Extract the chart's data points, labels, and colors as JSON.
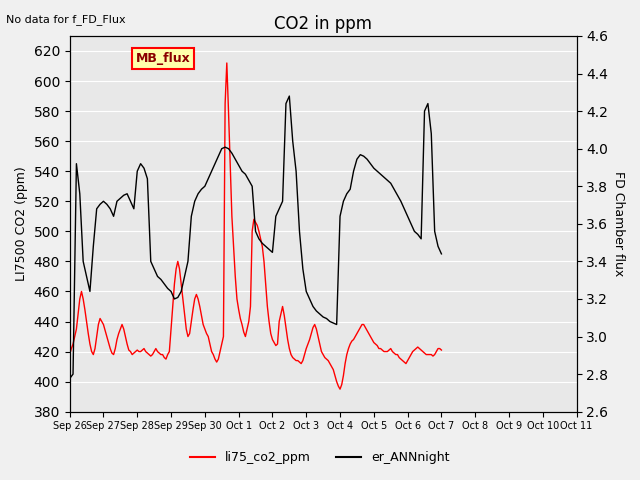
{
  "title": "CO2 in ppm",
  "ylabel_left": "LI7500 CO2 (ppm)",
  "ylabel_right": "FD Chamber flux",
  "ylim_left": [
    380,
    630
  ],
  "ylim_right": [
    2.6,
    4.6
  ],
  "top_left_text": "No data for f_FD_Flux",
  "legend_box_label": "MB_flux",
  "legend_entries": [
    "li75_co2_ppm",
    "er_ANNnight"
  ],
  "line_colors": [
    "red",
    "black"
  ],
  "background_color": "#d3d3d3",
  "plot_bg_color": "#e8e8e8",
  "fig_bg_color": "#f0f0f0",
  "x_tick_labels": [
    "Sep 26",
    "Sep 27",
    "Sep 28",
    "Sep 29",
    "Sep 30",
    "Oct 1",
    "Oct 2",
    "Oct 3",
    "Oct 4",
    "Oct 5",
    "Oct 6",
    "Oct 7",
    "Oct 8",
    "Oct 9",
    "Oct 10",
    "Oct 11"
  ],
  "yticks_left": [
    380,
    400,
    420,
    440,
    460,
    480,
    500,
    520,
    540,
    560,
    580,
    600,
    620
  ],
  "yticks_right": [
    2.6,
    2.8,
    3.0,
    3.2,
    3.4,
    3.6,
    3.8,
    4.0,
    4.2,
    4.4,
    4.6
  ],
  "red_data": {
    "x": [
      0,
      0.05,
      0.1,
      0.15,
      0.2,
      0.25,
      0.3,
      0.35,
      0.4,
      0.45,
      0.5,
      0.55,
      0.6,
      0.65,
      0.7,
      0.75,
      0.8,
      0.85,
      0.9,
      0.95,
      1.0,
      1.05,
      1.1,
      1.15,
      1.2,
      1.25,
      1.3,
      1.35,
      1.4,
      1.45,
      1.5,
      1.55,
      1.6,
      1.65,
      1.7,
      1.75,
      1.8,
      1.85,
      1.9,
      1.95,
      2.0,
      2.05,
      2.1,
      2.15,
      2.2,
      2.25,
      2.3,
      2.35,
      2.4,
      2.45,
      2.5,
      2.55,
      2.6,
      2.65,
      2.7,
      2.75,
      2.8,
      2.85,
      2.9,
      2.95,
      3.0,
      3.05,
      3.1,
      3.15,
      3.2,
      3.25,
      3.3,
      3.35,
      3.4,
      3.45,
      3.5,
      3.55,
      3.6,
      3.65,
      3.7,
      3.75,
      3.8,
      3.85,
      3.9,
      3.95,
      4.0,
      4.05,
      4.1,
      4.15,
      4.2,
      4.25,
      4.3,
      4.35,
      4.4,
      4.45,
      4.5,
      4.55,
      4.6,
      4.65,
      4.7,
      4.75,
      4.8,
      4.85,
      4.9,
      4.95,
      5.0,
      5.05,
      5.1,
      5.15,
      5.2,
      5.25,
      5.3,
      5.35,
      5.4,
      5.45,
      5.5,
      5.55,
      5.6,
      5.65,
      5.7,
      5.75,
      5.8,
      5.85,
      5.9,
      5.95,
      6.0,
      6.05,
      6.1,
      6.15,
      6.2,
      6.25,
      6.3,
      6.35,
      6.4,
      6.45,
      6.5,
      6.55,
      6.6,
      6.65,
      6.7,
      6.75,
      6.8,
      6.85,
      6.9,
      6.95,
      7.0,
      7.05,
      7.1,
      7.15,
      7.2,
      7.25,
      7.3,
      7.35,
      7.4,
      7.45,
      7.5,
      7.55,
      7.6,
      7.65,
      7.7,
      7.75,
      7.8,
      7.85,
      7.9,
      7.95,
      8.0,
      8.05,
      8.1,
      8.15,
      8.2,
      8.25,
      8.3,
      8.35,
      8.4,
      8.45,
      8.5,
      8.55,
      8.6,
      8.65,
      8.7,
      8.75,
      8.8,
      8.85,
      8.9,
      8.95,
      9.0,
      9.05,
      9.1,
      9.15,
      9.2,
      9.25,
      9.3,
      9.35,
      9.4,
      9.45,
      9.5,
      9.55,
      9.6,
      9.65,
      9.7,
      9.75,
      9.8,
      9.85,
      9.9,
      9.95,
      10.0,
      10.05,
      10.1,
      10.15,
      10.2,
      10.25,
      10.3,
      10.35,
      10.4,
      10.45,
      10.5,
      10.55,
      10.6,
      10.65,
      10.7,
      10.75,
      10.8,
      10.85,
      10.9,
      10.95,
      11.0
    ],
    "y": [
      418,
      422,
      425,
      430,
      435,
      445,
      455,
      460,
      455,
      448,
      440,
      432,
      425,
      420,
      418,
      422,
      430,
      438,
      442,
      440,
      438,
      434,
      430,
      426,
      422,
      419,
      418,
      422,
      428,
      432,
      435,
      438,
      435,
      430,
      425,
      421,
      420,
      418,
      419,
      420,
      421,
      420,
      420,
      421,
      422,
      420,
      419,
      418,
      417,
      418,
      420,
      422,
      420,
      419,
      418,
      418,
      416,
      415,
      418,
      420,
      435,
      450,
      465,
      475,
      480,
      475,
      465,
      455,
      445,
      435,
      430,
      432,
      440,
      448,
      455,
      458,
      455,
      450,
      444,
      438,
      435,
      432,
      430,
      425,
      420,
      418,
      415,
      413,
      415,
      420,
      425,
      430,
      585,
      612,
      580,
      545,
      510,
      490,
      470,
      455,
      448,
      442,
      438,
      433,
      430,
      435,
      440,
      450,
      500,
      508,
      506,
      504,
      500,
      495,
      490,
      480,
      465,
      450,
      440,
      432,
      428,
      426,
      424,
      425,
      440,
      445,
      450,
      444,
      436,
      428,
      422,
      418,
      416,
      415,
      414,
      414,
      413,
      412,
      414,
      418,
      422,
      425,
      428,
      432,
      436,
      438,
      435,
      430,
      425,
      420,
      418,
      416,
      415,
      414,
      412,
      410,
      408,
      404,
      400,
      397,
      395,
      398,
      404,
      412,
      418,
      422,
      425,
      427,
      428,
      430,
      432,
      434,
      436,
      438,
      438,
      436,
      434,
      432,
      430,
      428,
      426,
      425,
      424,
      422,
      422,
      421,
      420,
      420,
      420,
      421,
      422,
      420,
      419,
      418,
      418,
      416,
      415,
      414,
      413,
      412,
      414,
      416,
      418,
      420,
      421,
      422,
      423,
      422,
      421,
      420,
      419,
      418,
      418,
      418,
      418,
      417,
      418,
      420,
      422,
      422,
      421
    ]
  },
  "black_data": {
    "x": [
      0,
      0.1,
      0.2,
      0.3,
      0.4,
      0.5,
      0.6,
      0.7,
      0.8,
      0.9,
      1.0,
      1.1,
      1.2,
      1.3,
      1.4,
      1.5,
      1.6,
      1.7,
      1.8,
      1.9,
      2.0,
      2.1,
      2.2,
      2.3,
      2.4,
      2.5,
      2.6,
      2.7,
      2.8,
      2.9,
      3.0,
      3.1,
      3.2,
      3.3,
      3.4,
      3.5,
      3.6,
      3.7,
      3.8,
      3.9,
      4.0,
      4.1,
      4.2,
      4.3,
      4.4,
      4.5,
      4.6,
      4.7,
      4.8,
      4.9,
      5.0,
      5.1,
      5.2,
      5.3,
      5.4,
      5.5,
      5.6,
      5.7,
      5.8,
      5.9,
      6.0,
      6.1,
      6.2,
      6.3,
      6.4,
      6.5,
      6.6,
      6.7,
      6.8,
      6.9,
      7.0,
      7.1,
      7.2,
      7.3,
      7.4,
      7.5,
      7.6,
      7.7,
      7.8,
      7.9,
      8.0,
      8.1,
      8.2,
      8.3,
      8.4,
      8.5,
      8.6,
      8.7,
      8.8,
      8.9,
      9.0,
      9.1,
      9.2,
      9.3,
      9.4,
      9.5,
      9.6,
      9.7,
      9.8,
      9.9,
      10.0,
      10.1,
      10.2,
      10.3,
      10.4,
      10.5,
      10.6,
      10.7,
      10.8,
      10.9,
      11.0
    ],
    "y": [
      402,
      405,
      545,
      525,
      480,
      470,
      460,
      490,
      515,
      518,
      520,
      518,
      515,
      510,
      520,
      522,
      524,
      525,
      520,
      515,
      540,
      545,
      542,
      535,
      480,
      475,
      470,
      468,
      465,
      462,
      460,
      455,
      456,
      460,
      470,
      480,
      510,
      520,
      525,
      528,
      530,
      535,
      540,
      545,
      550,
      555,
      556,
      555,
      552,
      548,
      544,
      540,
      538,
      534,
      530,
      500,
      495,
      492,
      490,
      488,
      486,
      510,
      515,
      520,
      585,
      590,
      560,
      540,
      500,
      475,
      460,
      455,
      450,
      447,
      445,
      443,
      442,
      440,
      439,
      438,
      510,
      520,
      525,
      528,
      540,
      548,
      551,
      550,
      548,
      545,
      542,
      540,
      538,
      536,
      534,
      532,
      528,
      524,
      520,
      515,
      510,
      505,
      500,
      498,
      495,
      580,
      585,
      565,
      500,
      490,
      485
    ]
  }
}
